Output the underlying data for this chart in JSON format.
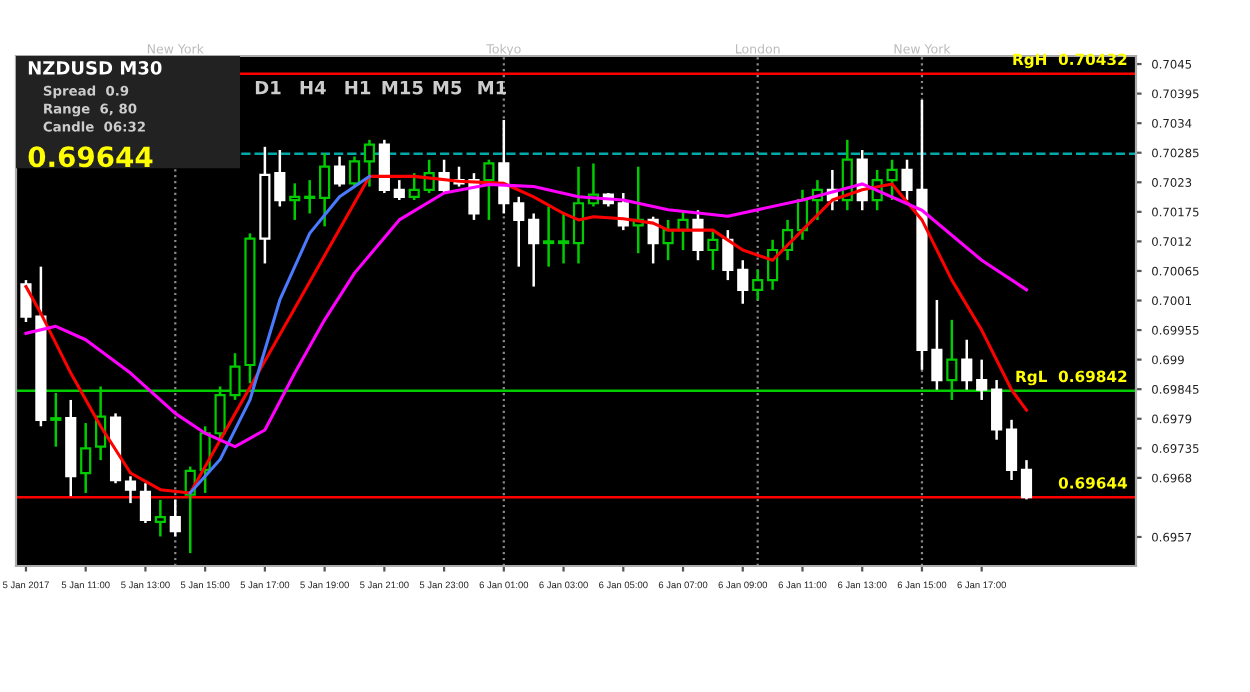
{
  "chart_data": {
    "type": "candlestick",
    "title": "NZDUSD M30",
    "x": [
      "2017-01-05T09:00",
      "2017-01-05T09:30",
      "2017-01-05T10:00",
      "2017-01-05T10:30",
      "2017-01-05T11:00",
      "2017-01-05T11:30",
      "2017-01-05T12:00",
      "2017-01-05T12:30",
      "2017-01-05T13:00",
      "2017-01-05T13:30",
      "2017-01-05T14:00",
      "2017-01-05T14:30",
      "2017-01-05T15:00",
      "2017-01-05T15:30",
      "2017-01-05T16:00",
      "2017-01-05T16:30",
      "2017-01-05T17:00",
      "2017-01-05T17:30",
      "2017-01-05T18:00",
      "2017-01-05T18:30",
      "2017-01-05T19:00",
      "2017-01-05T19:30",
      "2017-01-05T20:00",
      "2017-01-05T20:30",
      "2017-01-05T21:00",
      "2017-01-05T21:30",
      "2017-01-05T22:00",
      "2017-01-05T22:30",
      "2017-01-05T23:00",
      "2017-01-05T23:30",
      "2017-01-06T00:00",
      "2017-01-06T00:30",
      "2017-01-06T01:00",
      "2017-01-06T01:30",
      "2017-01-06T02:00",
      "2017-01-06T02:30",
      "2017-01-06T03:00",
      "2017-01-06T03:30",
      "2017-01-06T04:00",
      "2017-01-06T04:30",
      "2017-01-06T05:00",
      "2017-01-06T05:30",
      "2017-01-06T06:00",
      "2017-01-06T06:30",
      "2017-01-06T07:00",
      "2017-01-06T07:30",
      "2017-01-06T08:00",
      "2017-01-06T08:30",
      "2017-01-06T09:00",
      "2017-01-06T09:30",
      "2017-01-06T10:00",
      "2017-01-06T10:30",
      "2017-01-06T11:00",
      "2017-01-06T11:30",
      "2017-01-06T12:00",
      "2017-01-06T12:30",
      "2017-01-06T13:00",
      "2017-01-06T13:30",
      "2017-01-06T14:00",
      "2017-01-06T14:30",
      "2017-01-06T15:00",
      "2017-01-06T15:30",
      "2017-01-06T16:00",
      "2017-01-06T16:30",
      "2017-01-06T17:00",
      "2017-01-06T17:30",
      "2017-01-06T18:00",
      "2017-01-06T18:30"
    ],
    "ohlc": [
      [
        0.7004,
        0.70048,
        0.6997,
        0.6998
      ],
      [
        0.6998,
        0.70073,
        0.69776,
        0.69788
      ],
      [
        0.69788,
        0.69838,
        0.69738,
        0.69791
      ],
      [
        0.69791,
        0.69825,
        0.69646,
        0.69683
      ],
      [
        0.69689,
        0.69782,
        0.69652,
        0.69735
      ],
      [
        0.69738,
        0.6985,
        0.69713,
        0.69794
      ],
      [
        0.69792,
        0.698,
        0.6967,
        0.69676
      ],
      [
        0.69673,
        0.69683,
        0.69633,
        0.69658
      ],
      [
        0.69654,
        0.6967,
        0.69596,
        0.69602
      ],
      [
        0.69598,
        0.69639,
        0.69571,
        0.69607
      ],
      [
        0.69607,
        0.69639,
        0.69571,
        0.69581
      ],
      [
        0.69649,
        0.69701,
        0.6954,
        0.69693
      ],
      [
        0.69695,
        0.69776,
        0.69652,
        0.69763
      ],
      [
        0.69763,
        0.6985,
        0.69751,
        0.69834
      ],
      [
        0.69834,
        0.69912,
        0.69825,
        0.69887
      ],
      [
        0.6989,
        0.70135,
        0.69856,
        0.70125
      ],
      [
        0.70125,
        0.70296,
        0.70079,
        0.70244
      ],
      [
        0.70247,
        0.7029,
        0.70185,
        0.70197
      ],
      [
        0.70197,
        0.70228,
        0.7016,
        0.70203
      ],
      [
        0.70203,
        0.70234,
        0.70172,
        0.70201
      ],
      [
        0.70201,
        0.70284,
        0.70148,
        0.70259
      ],
      [
        0.70259,
        0.70278,
        0.70222,
        0.70228
      ],
      [
        0.70228,
        0.70278,
        0.70222,
        0.70269
      ],
      [
        0.70269,
        0.70309,
        0.70222,
        0.703
      ],
      [
        0.703,
        0.70309,
        0.7021,
        0.70216
      ],
      [
        0.70216,
        0.70234,
        0.70197,
        0.70203
      ],
      [
        0.70203,
        0.70247,
        0.70197,
        0.70216
      ],
      [
        0.70216,
        0.70272,
        0.7021,
        0.70247
      ],
      [
        0.70247,
        0.70272,
        0.7021,
        0.70216
      ],
      [
        0.70234,
        0.70259,
        0.70222,
        0.70228
      ],
      [
        0.70234,
        0.70247,
        0.7016,
        0.70172
      ],
      [
        0.70234,
        0.70272,
        0.7016,
        0.70265
      ],
      [
        0.70265,
        0.70346,
        0.70172,
        0.70191
      ],
      [
        0.70191,
        0.70203,
        0.70073,
        0.7016
      ],
      [
        0.7016,
        0.70172,
        0.70036,
        0.70117
      ],
      [
        0.70117,
        0.70185,
        0.70073,
        0.7012
      ],
      [
        0.70117,
        0.70172,
        0.70079,
        0.7012
      ],
      [
        0.70117,
        0.70259,
        0.70079,
        0.70191
      ],
      [
        0.70191,
        0.70265,
        0.70185,
        0.70207
      ],
      [
        0.70207,
        0.7021,
        0.70185,
        0.70191
      ],
      [
        0.70191,
        0.7021,
        0.70141,
        0.7015
      ],
      [
        0.7015,
        0.70259,
        0.70098,
        0.7016
      ],
      [
        0.7016,
        0.70166,
        0.70079,
        0.70117
      ],
      [
        0.70117,
        0.7016,
        0.70085,
        0.70141
      ],
      [
        0.70141,
        0.70178,
        0.70104,
        0.7016
      ],
      [
        0.7016,
        0.70178,
        0.70085,
        0.70104
      ],
      [
        0.70104,
        0.70141,
        0.70067,
        0.70123
      ],
      [
        0.70123,
        0.70141,
        0.70048,
        0.70067
      ],
      [
        0.70067,
        0.70085,
        0.70004,
        0.7003
      ],
      [
        0.7003,
        0.70067,
        0.70011,
        0.70048
      ],
      [
        0.70048,
        0.70123,
        0.7003,
        0.70104
      ],
      [
        0.70104,
        0.7016,
        0.70085,
        0.70141
      ],
      [
        0.70141,
        0.70216,
        0.70123,
        0.70197
      ],
      [
        0.70197,
        0.70234,
        0.7016,
        0.70216
      ],
      [
        0.70216,
        0.70253,
        0.70178,
        0.70197
      ],
      [
        0.70197,
        0.70309,
        0.70178,
        0.70272
      ],
      [
        0.70272,
        0.7029,
        0.70178,
        0.70197
      ],
      [
        0.70197,
        0.70253,
        0.70178,
        0.70234
      ],
      [
        0.70234,
        0.70272,
        0.70197,
        0.70253
      ],
      [
        0.70253,
        0.70272,
        0.70197,
        0.70216
      ],
      [
        0.70216,
        0.70383,
        0.69881,
        0.69918
      ],
      [
        0.69918,
        0.70011,
        0.69844,
        0.69862
      ],
      [
        0.69862,
        0.69974,
        0.69825,
        0.699
      ],
      [
        0.699,
        0.69937,
        0.69844,
        0.69862
      ],
      [
        0.69862,
        0.699,
        0.69825,
        0.69844
      ],
      [
        0.69844,
        0.69862,
        0.69751,
        0.6977
      ],
      [
        0.6977,
        0.69788,
        0.69676,
        0.69695
      ],
      [
        0.69695,
        0.69713,
        0.6964,
        0.69644
      ]
    ],
    "colors": [
      "#ffffff",
      "#ffffff",
      "#00cc00",
      "#ffffff",
      "#00cc00",
      "#00cc00",
      "#ffffff",
      "#ffffff",
      "#ffffff",
      "#00cc00",
      "#ffffff",
      "#00cc00",
      "#00cc00",
      "#00cc00",
      "#00cc00",
      "#00cc00",
      "#ffffff",
      "#ffffff",
      "#00cc00",
      "#00cc00",
      "#00cc00",
      "#ffffff",
      "#00cc00",
      "#00cc00",
      "#ffffff",
      "#ffffff",
      "#00cc00",
      "#00cc00",
      "#ffffff",
      "#ffffff",
      "#ffffff",
      "#00cc00",
      "#ffffff",
      "#ffffff",
      "#ffffff",
      "#00cc00",
      "#00cc00",
      "#00cc00",
      "#00cc00",
      "#ffffff",
      "#ffffff",
      "#00cc00",
      "#ffffff",
      "#00cc00",
      "#00cc00",
      "#ffffff",
      "#00cc00",
      "#ffffff",
      "#ffffff",
      "#00cc00",
      "#00cc00",
      "#00cc00",
      "#00cc00",
      "#00cc00",
      "#ffffff",
      "#00cc00",
      "#ffffff",
      "#00cc00",
      "#00cc00",
      "#ffffff",
      "#ffffff",
      "#ffffff",
      "#00cc00",
      "#ffffff",
      "#ffffff",
      "#ffffff",
      "#ffffff",
      "#ffffff"
    ],
    "series": [
      {
        "type": "line",
        "color": "#ff0000",
        "x": [
          "2017-01-05T09:00",
          "2017-01-05T09:30",
          "2017-01-05T10:30",
          "2017-01-05T11:30",
          "2017-01-05T12:30",
          "2017-01-05T13:30",
          "2017-01-05T14:30",
          "2017-01-05T20:30",
          "2017-01-05T22:00",
          "2017-01-05T23:30",
          "2017-01-06T01:00",
          "2017-01-06T02:00",
          "2017-01-06T03:00",
          "2017-01-06T03:30",
          "2017-01-06T04:00",
          "2017-01-06T05:00",
          "2017-01-06T06:00",
          "2017-01-06T06:30",
          "2017-01-06T08:00",
          "2017-01-06T09:00",
          "2017-01-06T10:00",
          "2017-01-06T11:00",
          "2017-01-06T12:00",
          "2017-01-06T13:00",
          "2017-01-06T14:00",
          "2017-01-06T15:00",
          "2017-01-06T16:00",
          "2017-01-06T17:00",
          "2017-01-06T18:00",
          "2017-01-06T18:30"
        ],
        "values": [
          0.70036,
          0.69986,
          0.69875,
          0.69776,
          0.69689,
          0.69658,
          0.69652,
          0.70241,
          0.70241,
          0.70232,
          0.70228,
          0.70203,
          0.70172,
          0.7016,
          0.70166,
          0.70162,
          0.70154,
          0.70141,
          0.70141,
          0.70104,
          0.70085,
          0.70141,
          0.70197,
          0.70216,
          0.70227,
          0.7016,
          0.70048,
          0.69955,
          0.69844,
          0.69806
        ]
      },
      {
        "type": "line",
        "color": "#4a7bff",
        "x": [
          "2017-01-05T14:30",
          "2017-01-05T15:30",
          "2017-01-05T16:30",
          "2017-01-05T17:30",
          "2017-01-05T18:30",
          "2017-01-05T19:30",
          "2017-01-05T20:30"
        ],
        "values": [
          0.69652,
          0.69714,
          0.69825,
          0.70011,
          0.70135,
          0.70203,
          0.70241
        ]
      },
      {
        "type": "line",
        "color": "#ff00ff",
        "x": [
          "2017-01-05T09:00",
          "2017-01-05T10:00",
          "2017-01-05T11:00",
          "2017-01-05T12:30",
          "2017-01-05T14:00",
          "2017-01-05T15:00",
          "2017-01-05T16:00",
          "2017-01-05T17:00",
          "2017-01-05T18:00",
          "2017-01-05T19:00",
          "2017-01-05T20:00",
          "2017-01-05T21:30",
          "2017-01-05T23:00",
          "2017-01-06T00:30",
          "2017-01-06T02:00",
          "2017-01-06T03:30",
          "2017-01-06T05:00",
          "2017-01-06T06:30",
          "2017-01-06T08:30",
          "2017-01-06T11:00",
          "2017-01-06T13:00",
          "2017-01-06T15:00",
          "2017-01-06T17:00",
          "2017-01-06T18:30"
        ],
        "values": [
          0.69949,
          0.69962,
          0.69937,
          0.69875,
          0.698,
          0.69763,
          0.69738,
          0.69769,
          0.69875,
          0.69974,
          0.70061,
          0.7016,
          0.7021,
          0.70226,
          0.70222,
          0.70203,
          0.70197,
          0.70179,
          0.70167,
          0.70197,
          0.70227,
          0.70178,
          0.70085,
          0.7003
        ]
      }
    ],
    "xlim": [
      "2017-01-05T08:40",
      "2017-01-06T22:10"
    ],
    "ylim": [
      0.69516,
      0.70465
    ],
    "xticks": [
      {
        "value": "2017-01-05T09:00",
        "label": "5 Jan 2017"
      },
      {
        "value": "2017-01-05T11:00",
        "label": "5 Jan 11:00"
      },
      {
        "value": "2017-01-05T13:00",
        "label": "5 Jan 13:00"
      },
      {
        "value": "2017-01-05T15:00",
        "label": "5 Jan 15:00"
      },
      {
        "value": "2017-01-05T17:00",
        "label": "5 Jan 17:00"
      },
      {
        "value": "2017-01-05T19:00",
        "label": "5 Jan 19:00"
      },
      {
        "value": "2017-01-05T21:00",
        "label": "5 Jan 21:00"
      },
      {
        "value": "2017-01-05T23:00",
        "label": "5 Jan 23:00"
      },
      {
        "value": "2017-01-06T01:00",
        "label": "6 Jan 01:00"
      },
      {
        "value": "2017-01-06T03:00",
        "label": "6 Jan 03:00"
      },
      {
        "value": "2017-01-06T05:00",
        "label": "6 Jan 05:00"
      },
      {
        "value": "2017-01-06T07:00",
        "label": "6 Jan 07:00"
      },
      {
        "value": "2017-01-06T09:00",
        "label": "6 Jan 09:00"
      },
      {
        "value": "2017-01-06T11:00",
        "label": "6 Jan 11:00"
      },
      {
        "value": "2017-01-06T13:00",
        "label": "6 Jan 13:00"
      },
      {
        "value": "2017-01-06T15:00",
        "label": "6 Jan 15:00"
      },
      {
        "value": "2017-01-06T17:00",
        "label": "6 Jan 17:00"
      }
    ],
    "yticks": [
      0.7045,
      0.70395,
      0.7034,
      0.70285,
      0.7023,
      0.70175,
      0.7012,
      0.70065,
      0.7001,
      0.69955,
      0.699,
      0.69845,
      0.6979,
      0.69735,
      0.6968,
      0.6957
    ],
    "ref_lines": [
      {
        "axis": "y",
        "value": 0.70432,
        "label": "RgH  0.70432",
        "color": "#ff0000"
      },
      {
        "axis": "y",
        "value": 0.69842,
        "label": "RgL  0.69842",
        "color": "#00cc00"
      },
      {
        "axis": "y",
        "value": 0.69644,
        "label": "0.69644",
        "color": "#ff0000"
      },
      {
        "axis": "y",
        "value": 0.70283,
        "color": "#00aaaa",
        "line_style": "dashed"
      },
      {
        "axis": "x",
        "value": "2017-01-05T14:00",
        "label": "New York",
        "color": "#888888",
        "line_style": "dotted"
      },
      {
        "axis": "x",
        "value": "2017-01-06T01:00",
        "label": "Tokyo",
        "color": "#888888",
        "line_style": "dotted"
      },
      {
        "axis": "x",
        "value": "2017-01-06T09:30",
        "label": "London",
        "color": "#888888",
        "line_style": "dotted"
      },
      {
        "axis": "x",
        "value": "2017-01-06T15:00",
        "label": "New York",
        "color": "#888888",
        "line_style": "dotted"
      }
    ],
    "annotations": [
      "Spread  0.9",
      "Range  6, 80",
      "Candle  06:32",
      "0.69644",
      "D1",
      "H4",
      "H1",
      "M15",
      "M5",
      "M1"
    ]
  }
}
